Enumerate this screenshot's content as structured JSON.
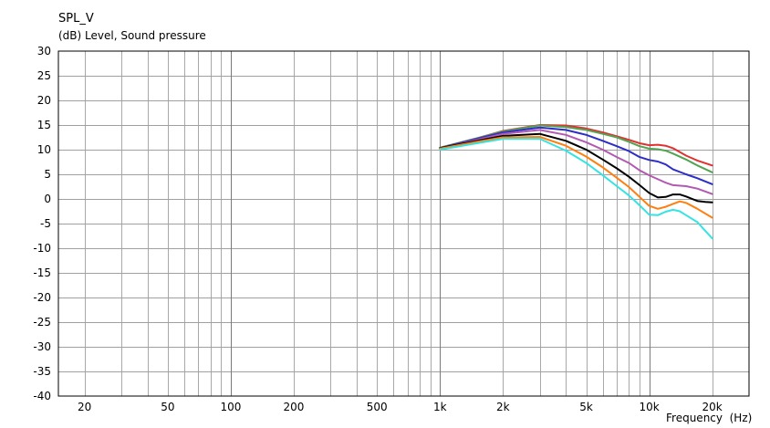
{
  "chart_data": {
    "type": "line",
    "title": "SPL_V",
    "ylabel": "(dB)  Level, Sound pressure",
    "xlabel": "Frequency  (Hz)",
    "x_scale": "log",
    "xlim": [
      15,
      30000
    ],
    "ylim": [
      -40,
      30
    ],
    "grid": true,
    "yticks": [
      30,
      25,
      20,
      15,
      10,
      5,
      0,
      -5,
      -10,
      -15,
      -20,
      -25,
      -30,
      -35,
      -40
    ],
    "xticks": [
      {
        "value": 20,
        "label": "20"
      },
      {
        "value": 50,
        "label": "50"
      },
      {
        "value": 100,
        "label": "100"
      },
      {
        "value": 200,
        "label": "200"
      },
      {
        "value": 500,
        "label": "500"
      },
      {
        "value": 1000,
        "label": "1k"
      },
      {
        "value": 2000,
        "label": "2k"
      },
      {
        "value": 5000,
        "label": "5k"
      },
      {
        "value": 10000,
        "label": "10k"
      },
      {
        "value": 20000,
        "label": "20k"
      }
    ],
    "series": [
      {
        "color": "#e03232",
        "x": [
          1000,
          1500,
          2000,
          3000,
          4000,
          5000,
          6000,
          7000,
          8000,
          9000,
          10000,
          11000,
          12000,
          13000,
          15000,
          17000,
          20000
        ],
        "y": [
          10.4,
          12.3,
          13.8,
          15.0,
          14.9,
          14.3,
          13.5,
          12.7,
          12.0,
          11.3,
          10.9,
          11.0,
          10.8,
          10.3,
          8.8,
          7.8,
          6.8
        ]
      },
      {
        "color": "#52a352",
        "x": [
          1000,
          1500,
          2000,
          3000,
          4000,
          5000,
          6000,
          7000,
          8000,
          9000,
          10000,
          11000,
          12000,
          13000,
          15000,
          17000,
          20000
        ],
        "y": [
          10.4,
          12.3,
          13.7,
          14.9,
          14.6,
          14.0,
          13.2,
          12.5,
          11.6,
          10.7,
          10.2,
          10.1,
          9.8,
          9.2,
          8.0,
          6.8,
          5.4
        ]
      },
      {
        "color": "#2d2dc8",
        "x": [
          1000,
          1500,
          2000,
          3000,
          4000,
          5000,
          6000,
          7000,
          8000,
          9000,
          10000,
          11000,
          12000,
          13000,
          15000,
          17000,
          20000
        ],
        "y": [
          10.3,
          12.2,
          13.5,
          14.5,
          14.0,
          13.0,
          11.8,
          10.7,
          9.7,
          8.5,
          7.9,
          7.6,
          7.0,
          6.0,
          5.0,
          4.2,
          3.0
        ]
      },
      {
        "color": "#b25ab2",
        "x": [
          1000,
          1500,
          2000,
          3000,
          4000,
          5000,
          6000,
          7000,
          8000,
          9000,
          10000,
          11000,
          12000,
          13000,
          15000,
          17000,
          20000
        ],
        "y": [
          10.2,
          12.0,
          13.2,
          14.0,
          13.0,
          11.5,
          10.0,
          8.5,
          7.3,
          5.8,
          4.8,
          4.0,
          3.3,
          2.8,
          2.6,
          2.1,
          1.0
        ]
      },
      {
        "color": "#000000",
        "x": [
          1000,
          1500,
          2000,
          3000,
          4000,
          5000,
          6000,
          7000,
          8000,
          9000,
          10000,
          11000,
          12000,
          13000,
          14000,
          15000,
          17000,
          18500,
          20000
        ],
        "y": [
          10.3,
          11.8,
          12.8,
          13.2,
          11.8,
          10.0,
          8.0,
          6.2,
          4.5,
          2.8,
          1.2,
          0.3,
          0.4,
          0.9,
          0.9,
          0.5,
          -0.4,
          -0.6,
          -0.7
        ]
      },
      {
        "color": "#ff7f0e",
        "x": [
          1000,
          1500,
          2000,
          3000,
          4000,
          5000,
          6000,
          7000,
          8000,
          9000,
          10000,
          11000,
          12000,
          13000,
          14000,
          15000,
          17000,
          20000
        ],
        "y": [
          10.2,
          11.6,
          12.5,
          12.6,
          10.8,
          8.6,
          6.4,
          4.3,
          2.4,
          0.4,
          -1.4,
          -2.0,
          -1.6,
          -1.0,
          -0.5,
          -0.8,
          -2.0,
          -3.8
        ]
      },
      {
        "color": "#35e3e3",
        "x": [
          1000,
          1500,
          2000,
          3000,
          4000,
          5000,
          6000,
          7000,
          8000,
          9000,
          10000,
          11000,
          12000,
          13000,
          14000,
          15000,
          17000,
          20000
        ],
        "y": [
          10.0,
          11.3,
          12.2,
          12.2,
          9.8,
          7.3,
          4.8,
          2.6,
          0.7,
          -1.3,
          -3.2,
          -3.3,
          -2.6,
          -2.2,
          -2.5,
          -3.3,
          -4.7,
          -8.0
        ]
      }
    ]
  }
}
